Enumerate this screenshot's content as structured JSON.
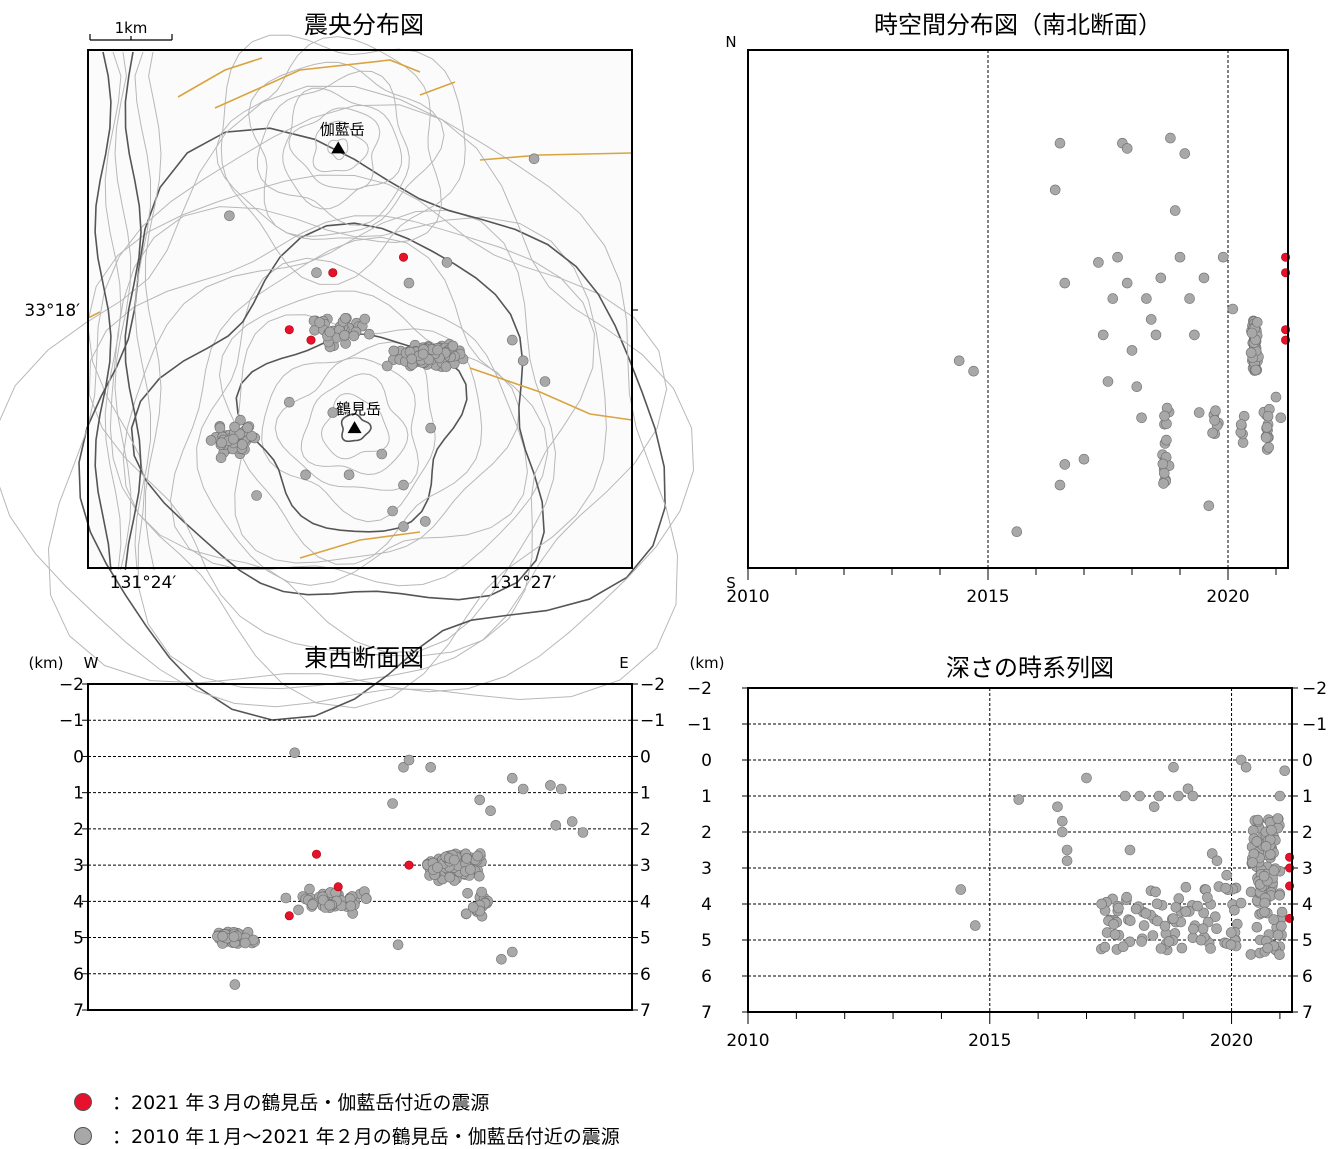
{
  "colors": {
    "recent": "#e8112d",
    "past": "#a8a8a8",
    "fault": "#d9a440",
    "contour": "#b8b8b8",
    "contour_dark": "#555555"
  },
  "chart_data": [
    {
      "id": "map",
      "type": "scatter",
      "title": "震央分布図",
      "scale_label": "1km",
      "lat_label": "33°18′",
      "lon_labels": [
        "131°24′",
        "131°27′"
      ],
      "peaks": [
        {
          "name": "伽藍岳",
          "x": 0.46,
          "y": 0.19
        },
        {
          "name": "鶴見岳",
          "x": 0.49,
          "y": 0.73
        }
      ],
      "recent": [
        [
          0.45,
          0.43
        ],
        [
          0.58,
          0.4
        ],
        [
          0.37,
          0.54
        ],
        [
          0.41,
          0.56
        ]
      ],
      "past_clusters": [
        {
          "cx": 0.63,
          "cy": 0.59,
          "rx": 0.09,
          "ry": 0.03,
          "n": 170
        },
        {
          "cx": 0.27,
          "cy": 0.75,
          "rx": 0.06,
          "ry": 0.05,
          "n": 50
        },
        {
          "cx": 0.46,
          "cy": 0.54,
          "rx": 0.1,
          "ry": 0.05,
          "n": 40
        }
      ],
      "past_isolated": [
        [
          0.26,
          0.32
        ],
        [
          0.42,
          0.43
        ],
        [
          0.59,
          0.45
        ],
        [
          0.66,
          0.41
        ],
        [
          0.37,
          0.68
        ],
        [
          0.45,
          0.7
        ],
        [
          0.63,
          0.73
        ],
        [
          0.4,
          0.82
        ],
        [
          0.54,
          0.78
        ],
        [
          0.48,
          0.82
        ],
        [
          0.31,
          0.86
        ],
        [
          0.56,
          0.89
        ],
        [
          0.58,
          0.92
        ],
        [
          0.62,
          0.91
        ],
        [
          0.78,
          0.56
        ],
        [
          0.84,
          0.64
        ],
        [
          0.8,
          0.6
        ],
        [
          0.82,
          0.21
        ],
        [
          0.58,
          0.84
        ],
        [
          0.55,
          0.61
        ]
      ]
    },
    {
      "id": "ns",
      "type": "scatter",
      "title": "時空間分布図（南北断面）",
      "top_label": "N",
      "bottom_label": "S",
      "x_ticks": [
        "2010",
        "2015",
        "2020"
      ],
      "xlim": [
        2010,
        2021.25
      ],
      "past": [
        [
          2014.4,
          0.6
        ],
        [
          2014.7,
          0.62
        ],
        [
          2015.6,
          0.93
        ],
        [
          2016.4,
          0.27
        ],
        [
          2016.5,
          0.18
        ],
        [
          2016.6,
          0.45
        ],
        [
          2016.5,
          0.84
        ],
        [
          2016.6,
          0.8
        ],
        [
          2017.0,
          0.79
        ],
        [
          2017.3,
          0.41
        ],
        [
          2017.4,
          0.55
        ],
        [
          2017.5,
          0.64
        ],
        [
          2017.6,
          0.48
        ],
        [
          2017.7,
          0.4
        ],
        [
          2017.8,
          0.18
        ],
        [
          2017.9,
          0.19
        ],
        [
          2017.9,
          0.45
        ],
        [
          2018.0,
          0.58
        ],
        [
          2018.1,
          0.65
        ],
        [
          2018.2,
          0.71
        ],
        [
          2018.3,
          0.48
        ],
        [
          2018.4,
          0.52
        ],
        [
          2018.5,
          0.55
        ],
        [
          2018.6,
          0.44
        ],
        [
          2018.7,
          0.83
        ],
        [
          2018.8,
          0.17
        ],
        [
          2018.9,
          0.31
        ],
        [
          2019.0,
          0.4
        ],
        [
          2019.1,
          0.2
        ],
        [
          2019.2,
          0.48
        ],
        [
          2019.3,
          0.55
        ],
        [
          2019.4,
          0.7
        ],
        [
          2019.5,
          0.44
        ],
        [
          2019.6,
          0.88
        ],
        [
          2019.8,
          0.72
        ],
        [
          2019.9,
          0.4
        ],
        [
          2020.1,
          0.5
        ],
        [
          2021.0,
          0.67
        ],
        [
          2021.1,
          0.71
        ]
      ],
      "past_columns": [
        {
          "x": 2018.7,
          "y0": 0.69,
          "y1": 0.84,
          "n": 18
        },
        {
          "x": 2019.7,
          "y0": 0.69,
          "y1": 0.76,
          "n": 6
        },
        {
          "x": 2020.55,
          "y0": 0.52,
          "y1": 0.62,
          "n": 60
        },
        {
          "x": 2020.8,
          "y0": 0.69,
          "y1": 0.78,
          "n": 15
        },
        {
          "x": 2020.3,
          "y0": 0.69,
          "y1": 0.76,
          "n": 6
        }
      ],
      "recent": [
        [
          2021.2,
          0.4
        ],
        [
          2021.2,
          0.43
        ],
        [
          2021.2,
          0.54
        ],
        [
          2021.2,
          0.56
        ]
      ]
    },
    {
      "id": "ew",
      "type": "scatter",
      "title": "東西断面図",
      "unit_label": "(km)",
      "left_label": "W",
      "right_label": "E",
      "y_ticks": [
        "−2",
        "−1",
        "0",
        "1",
        "2",
        "3",
        "4",
        "5",
        "6",
        "7"
      ],
      "ylim": [
        -2,
        7
      ],
      "past_clusters": [
        {
          "cx": 0.67,
          "cy": 3.0,
          "rx": 0.08,
          "ry": 0.6,
          "n": 150
        },
        {
          "cx": 0.27,
          "cy": 5.0,
          "rx": 0.06,
          "ry": 0.25,
          "n": 50
        },
        {
          "cx": 0.45,
          "cy": 4.0,
          "rx": 0.12,
          "ry": 0.5,
          "n": 50
        },
        {
          "cx": 0.72,
          "cy": 4.1,
          "rx": 0.05,
          "ry": 0.7,
          "n": 20
        }
      ],
      "past_isolated": [
        [
          0.38,
          -0.1
        ],
        [
          0.58,
          0.3
        ],
        [
          0.59,
          0.1
        ],
        [
          0.63,
          0.3
        ],
        [
          0.78,
          0.6
        ],
        [
          0.8,
          0.9
        ],
        [
          0.85,
          0.8
        ],
        [
          0.87,
          0.9
        ],
        [
          0.86,
          1.9
        ],
        [
          0.89,
          1.8
        ],
        [
          0.91,
          2.1
        ],
        [
          0.27,
          6.3
        ],
        [
          0.57,
          5.2
        ],
        [
          0.76,
          5.6
        ],
        [
          0.78,
          5.4
        ],
        [
          0.56,
          1.3
        ],
        [
          0.72,
          1.2
        ],
        [
          0.74,
          1.5
        ]
      ],
      "recent": [
        [
          0.42,
          2.7
        ],
        [
          0.46,
          3.6
        ],
        [
          0.59,
          3.0
        ],
        [
          0.37,
          4.4
        ]
      ]
    },
    {
      "id": "depth",
      "type": "scatter",
      "title": "深さの時系列図",
      "unit_label": "(km)",
      "y_ticks": [
        "−2",
        "−1",
        "0",
        "1",
        "2",
        "3",
        "4",
        "5",
        "6",
        "7"
      ],
      "x_ticks": [
        "2010",
        "2015",
        "2020"
      ],
      "xlim": [
        2010,
        2021.25
      ],
      "ylim": [
        -2,
        7
      ],
      "past": [
        [
          2014.4,
          3.6
        ],
        [
          2014.7,
          4.6
        ],
        [
          2015.6,
          1.1
        ],
        [
          2016.4,
          1.3
        ],
        [
          2016.5,
          2.0
        ],
        [
          2016.6,
          2.5
        ],
        [
          2016.5,
          1.7
        ],
        [
          2016.6,
          2.8
        ],
        [
          2017.0,
          0.5
        ],
        [
          2017.8,
          1.0
        ],
        [
          2017.9,
          2.5
        ],
        [
          2018.1,
          1.0
        ],
        [
          2018.5,
          1.0
        ],
        [
          2018.8,
          0.2
        ],
        [
          2018.9,
          1.0
        ],
        [
          2019.1,
          0.8
        ],
        [
          2019.2,
          1.0
        ],
        [
          2019.6,
          2.6
        ],
        [
          2019.7,
          2.8
        ],
        [
          2020.2,
          0.0
        ],
        [
          2020.3,
          0.2
        ],
        [
          2021.1,
          0.3
        ],
        [
          2021.0,
          1.0
        ],
        [
          2020.4,
          5.4
        ],
        [
          2018.4,
          1.3
        ],
        [
          2019.9,
          3.2
        ]
      ],
      "past_clusters": [
        {
          "x0": 2017.3,
          "x1": 2020.2,
          "y0": 3.5,
          "y1": 5.3,
          "n": 95
        },
        {
          "x0": 2020.4,
          "x1": 2021.0,
          "y0": 1.6,
          "y1": 4.0,
          "n": 80
        },
        {
          "x0": 2020.5,
          "x1": 2021.05,
          "y0": 4.2,
          "y1": 5.5,
          "n": 25
        }
      ],
      "recent": [
        [
          2021.2,
          2.7
        ],
        [
          2021.2,
          3.0
        ],
        [
          2021.2,
          3.5
        ],
        [
          2021.2,
          4.4
        ]
      ]
    }
  ],
  "legend": [
    {
      "label": "：2021 年３月の鶴見岳・伽藍岳付近の震源",
      "kind": "recent"
    },
    {
      "label": "：2010 年１月～2021 年２月の鶴見岳・伽藍岳付近の震源",
      "kind": "past"
    }
  ]
}
